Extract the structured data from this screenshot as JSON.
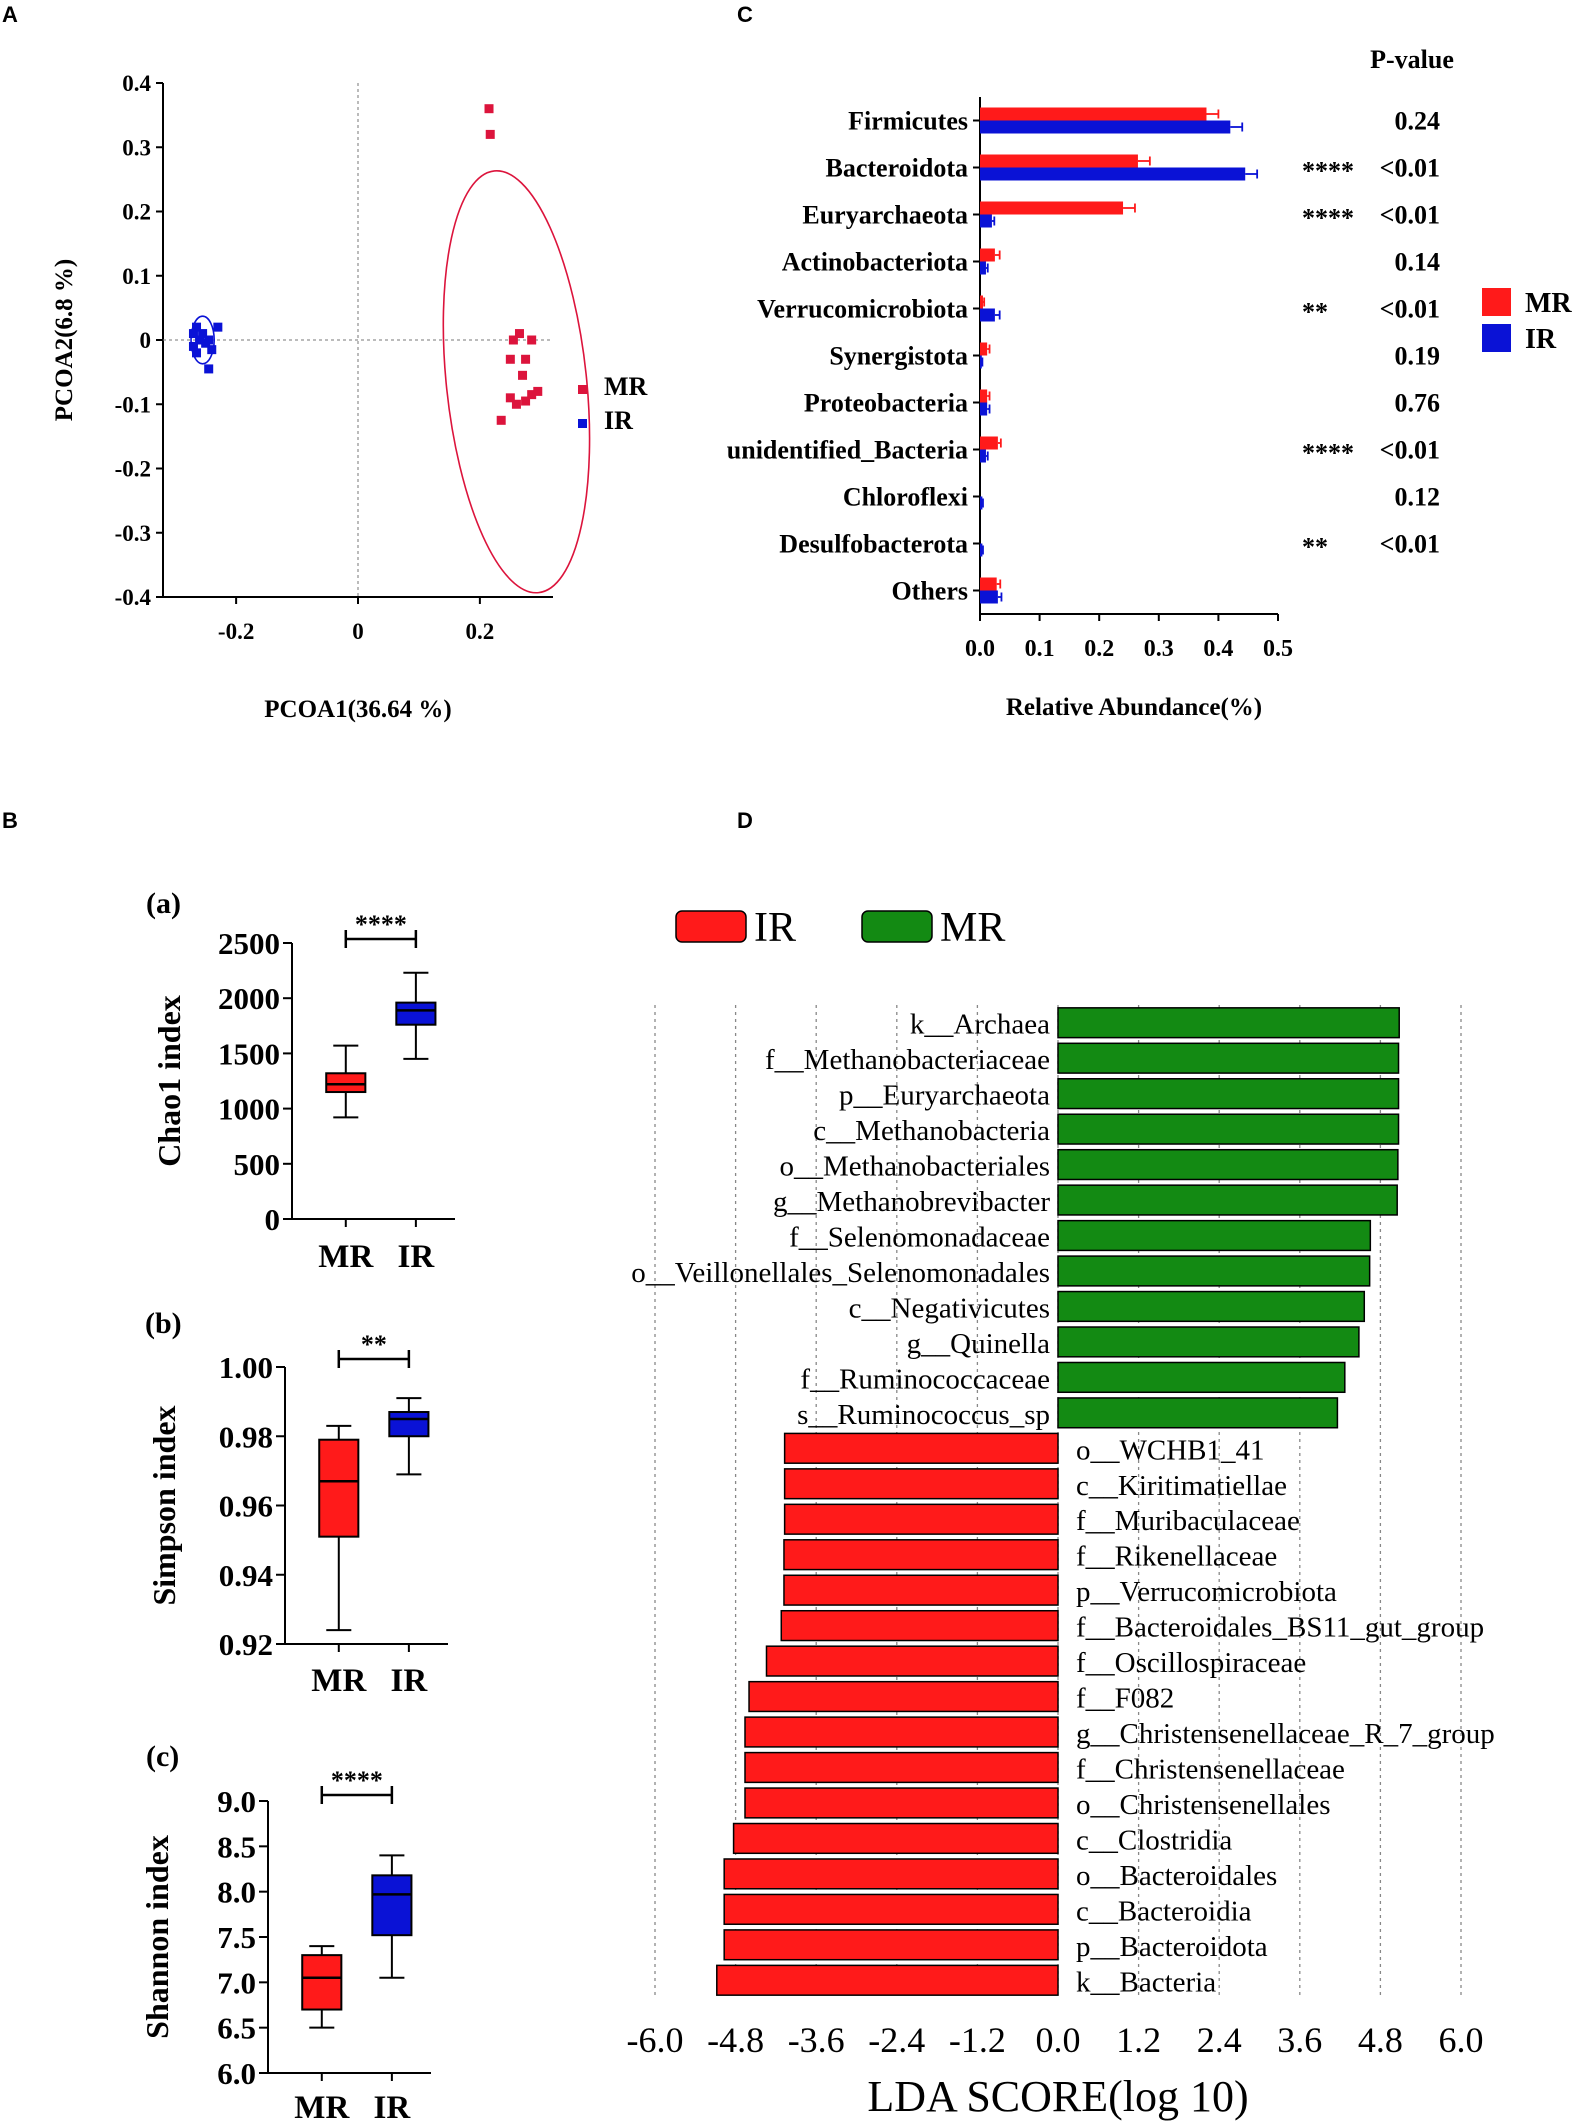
{
  "panel_letters": {
    "A": "A",
    "B": "B",
    "C": "C",
    "D": "D"
  },
  "colors": {
    "red": "#ff1a1a",
    "blue": "#0a12d6",
    "pcoa_red": "#dc143c",
    "green": "#138a13",
    "axis": "#000000"
  },
  "chart_data": [
    {
      "id": "A",
      "type": "scatter",
      "xlabel": "PCOA1(36.64 %)",
      "ylabel": "PCOA2(6.8 %)",
      "xlim": [
        -0.32,
        0.32
      ],
      "ylim": [
        -0.4,
        0.4
      ],
      "xticks": [
        "-0.2",
        "0",
        "0.2"
      ],
      "xtick_values": [
        -0.2,
        0,
        0.2
      ],
      "yticks": [
        "0.4",
        "0.3",
        "0.2",
        "0.1",
        "0",
        "-0.1",
        "-0.2",
        "-0.3",
        "-0.4"
      ],
      "ytick_values": [
        0.4,
        0.3,
        0.2,
        0.1,
        0,
        -0.1,
        -0.2,
        -0.3,
        -0.4
      ],
      "legend": [
        {
          "name": "MR",
          "color": "#dc143c"
        },
        {
          "name": "IR",
          "color": "#0a12d6"
        }
      ],
      "series": [
        {
          "name": "MR",
          "points": [
            [
              0.215,
              0.36
            ],
            [
              0.217,
              0.32
            ],
            [
              0.255,
              0.0
            ],
            [
              0.265,
              0.01
            ],
            [
              0.285,
              0.0
            ],
            [
              0.25,
              -0.03
            ],
            [
              0.275,
              -0.03
            ],
            [
              0.27,
              -0.055
            ],
            [
              0.285,
              -0.085
            ],
            [
              0.275,
              -0.095
            ],
            [
              0.295,
              -0.08
            ],
            [
              0.25,
              -0.09
            ],
            [
              0.26,
              -0.1
            ],
            [
              0.235,
              -0.125
            ]
          ]
        },
        {
          "name": "IR",
          "points": [
            [
              -0.27,
              0.01
            ],
            [
              -0.27,
              -0.01
            ],
            [
              -0.265,
              0.02
            ],
            [
              -0.265,
              -0.02
            ],
            [
              -0.26,
              0.0
            ],
            [
              -0.255,
              0.01
            ],
            [
              -0.25,
              -0.005
            ],
            [
              -0.245,
              0.0
            ],
            [
              -0.24,
              -0.015
            ],
            [
              -0.23,
              0.02
            ],
            [
              -0.245,
              -0.045
            ]
          ]
        }
      ],
      "ellipses": [
        {
          "name": "MR",
          "cx": 0.26,
          "cy": -0.065,
          "rx": 0.115,
          "ry": 0.33,
          "rotate": -6
        },
        {
          "name": "IR",
          "cx": -0.255,
          "cy": 0.0,
          "rx": 0.019,
          "ry": 0.037,
          "rotate": 0
        }
      ]
    },
    {
      "id": "C",
      "type": "bar",
      "orientation": "horizontal",
      "xlabel": "Relative Abundance(%)",
      "xlim": [
        0.0,
        0.5
      ],
      "xticks": [
        "0.0",
        "0.1",
        "0.2",
        "0.3",
        "0.4",
        "0.5"
      ],
      "pvalue_header": "P-value",
      "categories": [
        "Firmicutes",
        "Bacteroidota",
        "Euryarchaeota",
        "Actinobacteriota",
        "Verrucomicrobiota",
        "Synergistota",
        "Proteobacteria",
        "unidentified_Bacteria",
        "Chloroflexi",
        "Desulfobacterota",
        "Others"
      ],
      "series": [
        {
          "name": "MR",
          "color": "#ff1a1a",
          "values": [
            0.38,
            0.265,
            0.24,
            0.025,
            0.005,
            0.012,
            0.012,
            0.03,
            0.0,
            0.0,
            0.028
          ],
          "errors": [
            0.02,
            0.02,
            0.02,
            0.008,
            0.002,
            0.004,
            0.004,
            0.005,
            0.0,
            0.0,
            0.006
          ]
        },
        {
          "name": "IR",
          "color": "#0a12d6",
          "values": [
            0.42,
            0.445,
            0.02,
            0.01,
            0.025,
            0.003,
            0.012,
            0.01,
            0.004,
            0.004,
            0.03
          ],
          "errors": [
            0.02,
            0.02,
            0.004,
            0.003,
            0.008,
            0.001,
            0.004,
            0.003,
            0.001,
            0.001,
            0.006
          ]
        }
      ],
      "significance": [
        "",
        "****",
        "****",
        "",
        "**",
        "",
        "",
        "****",
        "",
        "**",
        ""
      ],
      "pvalues": [
        "0.24",
        "<0.01",
        "<0.01",
        "0.14",
        "<0.01",
        "0.19",
        "0.76",
        "<0.01",
        "0.12",
        "<0.01",
        ""
      ],
      "legend": [
        {
          "name": "MR",
          "color": "#ff1a1a"
        },
        {
          "name": "IR",
          "color": "#0a12d6"
        }
      ]
    },
    {
      "id": "B-a",
      "type": "box",
      "sublabel": "(a)",
      "ylabel": "Chao1 index",
      "ylim": [
        0,
        2500
      ],
      "yticks": [
        "2500",
        "2000",
        "1500",
        "1000",
        "500",
        "0"
      ],
      "ytick_values": [
        2500,
        2000,
        1500,
        1000,
        500,
        0
      ],
      "categories": [
        "MR",
        "IR"
      ],
      "boxes": [
        {
          "name": "MR",
          "color": "#ff1a1a",
          "min": 920,
          "q1": 1150,
          "median": 1220,
          "q3": 1320,
          "max": 1570
        },
        {
          "name": "IR",
          "color": "#0a12d6",
          "min": 1450,
          "q1": 1760,
          "median": 1890,
          "q3": 1960,
          "max": 2230
        }
      ],
      "significance": "****"
    },
    {
      "id": "B-b",
      "type": "box",
      "sublabel": "(b)",
      "ylabel": "Simpson index",
      "ylim": [
        0.92,
        1.0
      ],
      "yticks": [
        "1.00",
        "0.98",
        "0.96",
        "0.94",
        "0.92"
      ],
      "ytick_values": [
        1.0,
        0.98,
        0.96,
        0.94,
        0.92
      ],
      "categories": [
        "MR",
        "IR"
      ],
      "boxes": [
        {
          "name": "MR",
          "color": "#ff1a1a",
          "min": 0.924,
          "q1": 0.951,
          "median": 0.967,
          "q3": 0.979,
          "max": 0.983
        },
        {
          "name": "IR",
          "color": "#0a12d6",
          "min": 0.969,
          "q1": 0.98,
          "median": 0.985,
          "q3": 0.987,
          "max": 0.991
        }
      ],
      "significance": "**"
    },
    {
      "id": "B-c",
      "type": "box",
      "sublabel": "(c)",
      "ylabel": "Shannon index",
      "ylim": [
        6.0,
        9.0
      ],
      "yticks": [
        "9.0",
        "8.5",
        "8.0",
        "7.5",
        "7.0",
        "6.5",
        "6.0"
      ],
      "ytick_values": [
        9.0,
        8.5,
        8.0,
        7.5,
        7.0,
        6.5,
        6.0
      ],
      "categories": [
        "MR",
        "IR"
      ],
      "boxes": [
        {
          "name": "MR",
          "color": "#ff1a1a",
          "min": 6.5,
          "q1": 6.7,
          "median": 7.05,
          "q3": 7.3,
          "max": 7.4
        },
        {
          "name": "IR",
          "color": "#0a12d6",
          "min": 7.05,
          "q1": 7.52,
          "median": 7.97,
          "q3": 8.18,
          "max": 8.4
        }
      ],
      "significance": "****"
    },
    {
      "id": "D",
      "type": "bar",
      "orientation": "horizontal",
      "xlabel": "LDA SCORE(log 10)",
      "xlim": [
        -6.0,
        6.0
      ],
      "xticks": [
        "-6.0",
        "-4.8",
        "-3.6",
        "-2.4",
        "-1.2",
        "0.0",
        "1.2",
        "2.4",
        "3.6",
        "4.8",
        "6.0"
      ],
      "xtick_values": [
        -6.0,
        -4.8,
        -3.6,
        -2.4,
        -1.2,
        0.0,
        1.2,
        2.4,
        3.6,
        4.8,
        6.0
      ],
      "legend": [
        {
          "name": "IR",
          "color": "#ff1a1a"
        },
        {
          "name": "MR",
          "color": "#138a13"
        }
      ],
      "categories": [
        "k__Archaea",
        "f__Methanobacteriaceae",
        "p__Euryarchaeota",
        "c__Methanobacteria",
        "o__Methanobacteriales",
        "g__Methanobrevibacter",
        "f__Selenomonadaceae",
        "o__Veillonellales_Selenomonadales",
        "c__Negativicutes",
        "g__Quinella",
        "f__Ruminococcaceae",
        "s__Ruminococcus_sp",
        "o__WCHB1_41",
        "c__Kiritimatiellae",
        "f__Muribaculaceae",
        "f__Rikenellaceae",
        "p__Verrucomicrobiota",
        "f__Bacteroidales_BS11_gut_group",
        "f__Oscillospiraceae",
        "f__F082",
        "g__Christensenellaceae_R_7_group",
        "f__Christensenellaceae",
        "o__Christensenellales",
        "c__Clostridia",
        "o__Bacteroidales",
        "c__Bacteroidia",
        "p__Bacteroidota",
        "k__Bacteria"
      ],
      "values": [
        5.08,
        5.07,
        5.07,
        5.07,
        5.06,
        5.05,
        4.65,
        4.64,
        4.56,
        4.48,
        4.27,
        4.16,
        -4.07,
        -4.07,
        -4.07,
        -4.08,
        -4.08,
        -4.12,
        -4.34,
        -4.6,
        -4.66,
        -4.66,
        -4.66,
        -4.83,
        -4.97,
        -4.97,
        -4.97,
        -5.08
      ],
      "groups": [
        "MR",
        "MR",
        "MR",
        "MR",
        "MR",
        "MR",
        "MR",
        "MR",
        "MR",
        "MR",
        "MR",
        "MR",
        "IR",
        "IR",
        "IR",
        "IR",
        "IR",
        "IR",
        "IR",
        "IR",
        "IR",
        "IR",
        "IR",
        "IR",
        "IR",
        "IR",
        "IR",
        "IR"
      ]
    }
  ]
}
